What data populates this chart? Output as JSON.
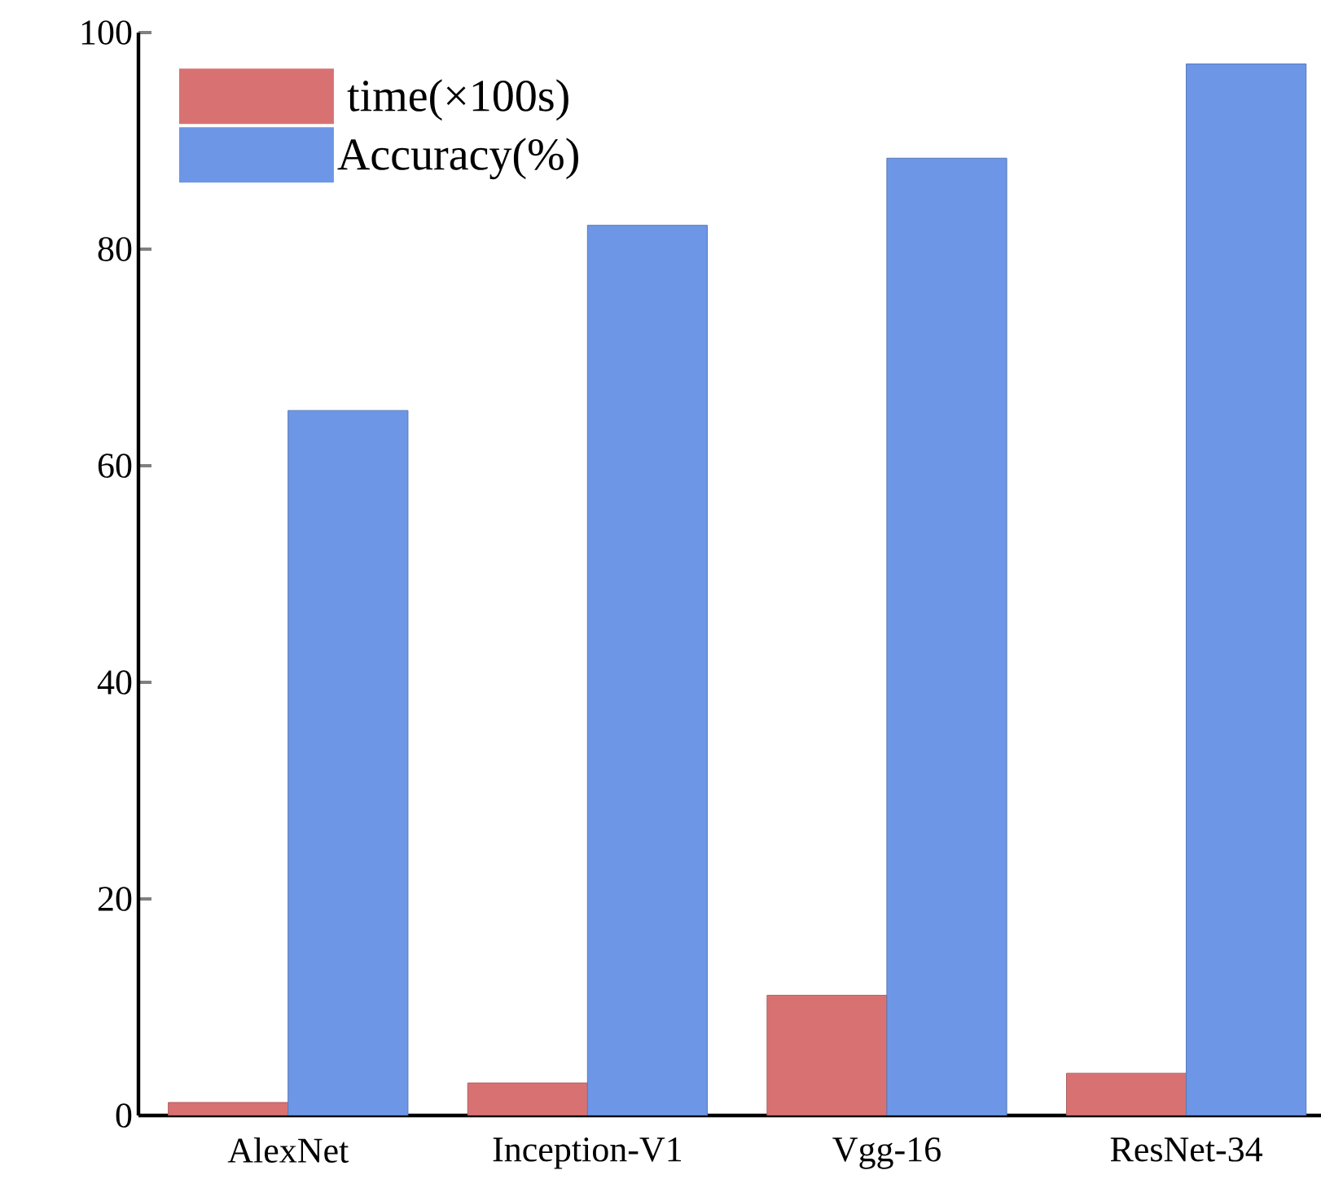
{
  "chart_data": {
    "type": "bar",
    "categories": [
      "AlexNet",
      "Inception-V1",
      "Vgg-16",
      "ResNet-34"
    ],
    "series": [
      {
        "name": "time(×100s)",
        "color": "#d87272",
        "values": [
          1.2,
          3.0,
          11.1,
          3.9
        ]
      },
      {
        "name": "Accuracy(%)",
        "color": "#6d96e6",
        "values": [
          65.1,
          82.2,
          88.4,
          97.1
        ]
      }
    ],
    "ylim": [
      0,
      100
    ],
    "yticks": [
      0,
      20,
      40,
      60,
      80,
      100
    ],
    "legend": "top left"
  }
}
